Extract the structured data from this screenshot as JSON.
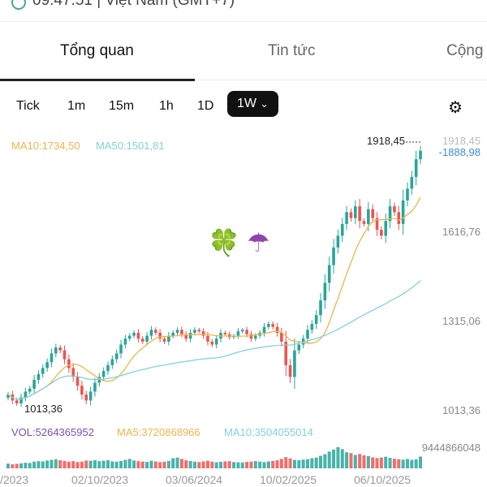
{
  "status": {
    "text": "09:47:51 | Việt Nam (GMT+7)"
  },
  "tabs": [
    {
      "label": "Tổng quan",
      "active": true
    },
    {
      "label": "Tin tức"
    },
    {
      "label": "Cộng"
    }
  ],
  "timeframes": [
    "Tick",
    "1m",
    "15m",
    "1h",
    "1D"
  ],
  "selected_timeframe": "1W",
  "dropdown_glyph": "⌄",
  "settings_icon": "⚙",
  "ma": {
    "ma10": "MA10:1734,50",
    "ma50": "MA50:1501,81"
  },
  "colors": {
    "up": "#27a69a",
    "down": "#ef5350",
    "ma10": "#f0b44c",
    "ma50": "#7fd3d8",
    "vol": "#7a4fb5",
    "last": "#3b8fd0"
  },
  "price_labels": {
    "high": "1918,45",
    "last": "-1888,98",
    "top": "1918,45",
    "l2": "1616,76",
    "l3": "1315,06",
    "bottom": "1013,36",
    "low": "1013,36"
  },
  "volume": {
    "vol": "VOL:5264365952",
    "ma5": "MA5:3720868966",
    "ma10": "MA10:3504055014",
    "max": "9444866048"
  },
  "emojis": {
    "clover": "🍀",
    "umbrella": "☂"
  },
  "chart_data": {
    "type": "candlestick",
    "x_ticks": [
      "/2023",
      "02/10/2023",
      "03/06/2024",
      "10/02/2025",
      "06/10/2025"
    ],
    "ylim": [
      1013.36,
      1918.45
    ],
    "y_ticks": [
      "1918,45",
      "1616,76",
      "1315,06",
      "1013,36"
    ],
    "closes": [
      1060,
      1040,
      1030,
      1050,
      1070,
      1080,
      1110,
      1130,
      1150,
      1170,
      1200,
      1220,
      1210,
      1180,
      1150,
      1120,
      1090,
      1060,
      1040,
      1070,
      1100,
      1120,
      1140,
      1160,
      1180,
      1200,
      1230,
      1250,
      1260,
      1270,
      1250,
      1240,
      1260,
      1280,
      1270,
      1250,
      1240,
      1260,
      1270,
      1280,
      1265,
      1250,
      1270,
      1280,
      1275,
      1260,
      1240,
      1230,
      1250,
      1270,
      1265,
      1255,
      1260,
      1275,
      1280,
      1265,
      1250,
      1260,
      1270,
      1290,
      1300,
      1290,
      1270,
      1240,
      1160,
      1120,
      1210,
      1230,
      1250,
      1280,
      1300,
      1330,
      1380,
      1440,
      1500,
      1560,
      1600,
      1640,
      1680,
      1660,
      1700,
      1650,
      1640,
      1690,
      1660,
      1620,
      1600,
      1650,
      1700,
      1680,
      1640,
      1720,
      1760,
      1800,
      1860,
      1888.98
    ],
    "volumes_bn": [
      2.1,
      1.8,
      2,
      2.2,
      2.5,
      2.4,
      3,
      3.2,
      3.1,
      3.5,
      3.8,
      4,
      3.6,
      3.3,
      3,
      3.2,
      2.8,
      3,
      3.5,
      3.4,
      3.6,
      3.2,
      3.4,
      3.6,
      3.1,
      3,
      3.3,
      3.8,
      4.2,
      3.5,
      3.2,
      3,
      2.9,
      3.4,
      3.1,
      2.8,
      3,
      3.3,
      4.5,
      4.8,
      4.2,
      3.6,
      3.3,
      3,
      2.8,
      3.1,
      3.4,
      3,
      2.7,
      2.9,
      3.1,
      3.2,
      2.8,
      2.7,
      2.6,
      2.9,
      3,
      3.2,
      3,
      2.8,
      3.1,
      3.3,
      3.6,
      4.2,
      5,
      4.4,
      3.8,
      3.6,
      3.9,
      4.1,
      4.5,
      4.8,
      5.6,
      6.3,
      7.5,
      8.4,
      9.44,
      8.6,
      7.2,
      6.8,
      6,
      6.4,
      5.8,
      5.5,
      4.9,
      4.6,
      4.8,
      5.2,
      4.7,
      4.3,
      4.1,
      3.9,
      4.2,
      3.8,
      4,
      5.26
    ]
  }
}
